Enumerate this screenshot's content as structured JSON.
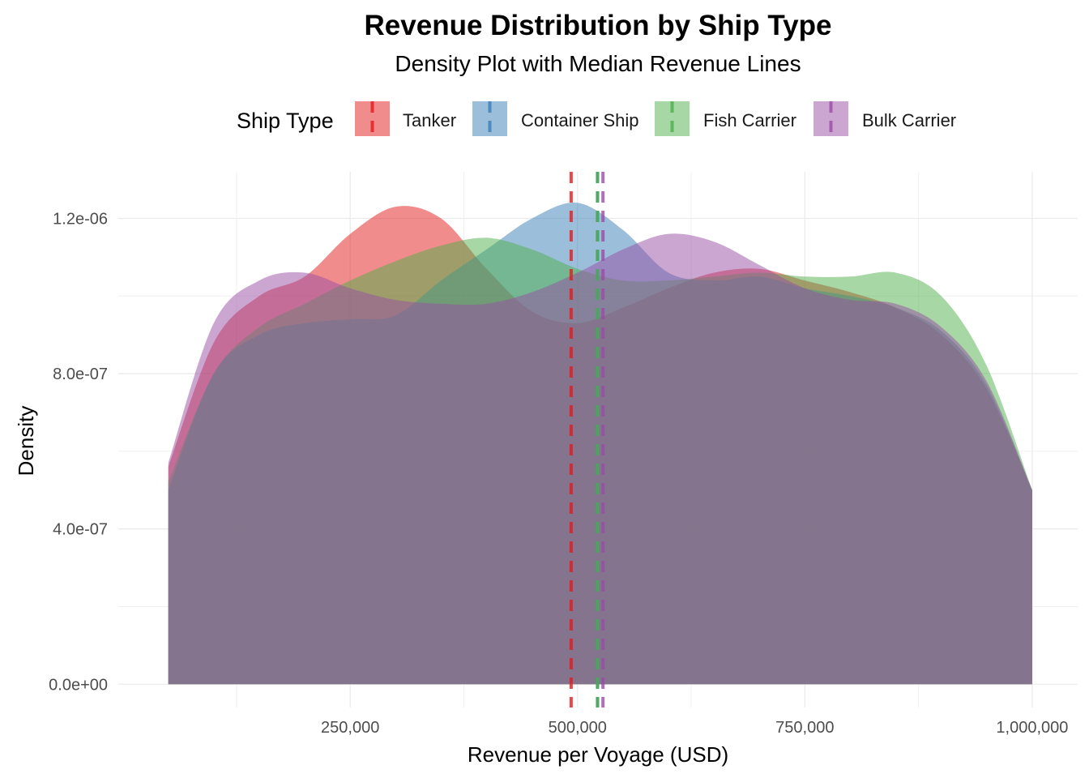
{
  "chart_data": {
    "type": "area",
    "title": "Revenue Distribution by Ship Type",
    "subtitle": "Density Plot with Median Revenue Lines",
    "xlabel": "Revenue per Voyage (USD)",
    "ylabel": "Density",
    "xlim": [
      -5000,
      1050000
    ],
    "ylim": [
      -6e-08,
      1.32e-06
    ],
    "x_ticks": [
      {
        "value": 250000,
        "label": "250,000"
      },
      {
        "value": 500000,
        "label": "500,000"
      },
      {
        "value": 750000,
        "label": "750,000"
      },
      {
        "value": 1000000,
        "label": "1,000,000"
      }
    ],
    "y_ticks": [
      {
        "value": 0,
        "label": "0.0e+00"
      },
      {
        "value": 4e-07,
        "label": "4.0e-07"
      },
      {
        "value": 8e-07,
        "label": "8.0e-07"
      },
      {
        "value": 1.2e-06,
        "label": "1.2e-06"
      }
    ],
    "grid": true,
    "legend": {
      "title": "Ship Type",
      "position": "top"
    },
    "series": [
      {
        "name": "Tanker",
        "color": "#E41A1C",
        "median": 493000,
        "x": [
          50000,
          100000,
          150000,
          200000,
          250000,
          300000,
          350000,
          400000,
          450000,
          500000,
          550000,
          600000,
          650000,
          700000,
          750000,
          800000,
          850000,
          900000,
          950000,
          1000000
        ],
        "y": [
          5.6e-07,
          8.8e-07,
          1e-06,
          1.05e-06,
          1.16e-06,
          1.23e-06,
          1.2e-06,
          1.07e-06,
          9.6e-07,
          9.3e-07,
          9.7e-07,
          1.02e-06,
          1.06e-06,
          1.07e-06,
          1.04e-06,
          1.01e-06,
          9.7e-07,
          9e-07,
          7.6e-07,
          5e-07
        ]
      },
      {
        "name": "Container Ship",
        "color": "#377EB8",
        "median": 522000,
        "x": [
          50000,
          100000,
          150000,
          200000,
          250000,
          300000,
          350000,
          400000,
          450000,
          500000,
          550000,
          600000,
          650000,
          700000,
          750000,
          800000,
          850000,
          900000,
          950000,
          1000000
        ],
        "y": [
          5e-07,
          8e-07,
          9e-07,
          9.3e-07,
          9.4e-07,
          9.5e-07,
          1.04e-06,
          1.12e-06,
          1.2e-06,
          1.24e-06,
          1.17e-06,
          1.06e-06,
          1.04e-06,
          1.05e-06,
          1.02e-06,
          1e-06,
          9.7e-07,
          9.1e-07,
          7.7e-07,
          5e-07
        ]
      },
      {
        "name": "Fish Carrier",
        "color": "#4DAF4A",
        "median": 522000,
        "x": [
          50000,
          100000,
          150000,
          200000,
          250000,
          300000,
          350000,
          400000,
          450000,
          500000,
          550000,
          600000,
          650000,
          700000,
          750000,
          800000,
          850000,
          900000,
          950000,
          1000000
        ],
        "y": [
          5.2e-07,
          8e-07,
          9.2e-07,
          9.8e-07,
          1.04e-06,
          1.09e-06,
          1.13e-06,
          1.15e-06,
          1.12e-06,
          1.07e-06,
          1.04e-06,
          1.04e-06,
          1.05e-06,
          1.06e-06,
          1.05e-06,
          1.05e-06,
          1.06e-06,
          1e-06,
          8.2e-07,
          5e-07
        ]
      },
      {
        "name": "Bulk Carrier",
        "color": "#984EA3",
        "median": 528000,
        "x": [
          50000,
          100000,
          150000,
          200000,
          250000,
          300000,
          350000,
          400000,
          450000,
          500000,
          550000,
          600000,
          650000,
          700000,
          750000,
          800000,
          850000,
          900000,
          950000,
          1000000
        ],
        "y": [
          5.7e-07,
          9.3e-07,
          1.04e-06,
          1.06e-06,
          1.02e-06,
          9.9e-07,
          9.8e-07,
          9.8e-07,
          1.01e-06,
          1.06e-06,
          1.12e-06,
          1.16e-06,
          1.14e-06,
          1.08e-06,
          1.02e-06,
          9.9e-07,
          9.8e-07,
          9.2e-07,
          7.8e-07,
          5e-07
        ]
      }
    ]
  }
}
